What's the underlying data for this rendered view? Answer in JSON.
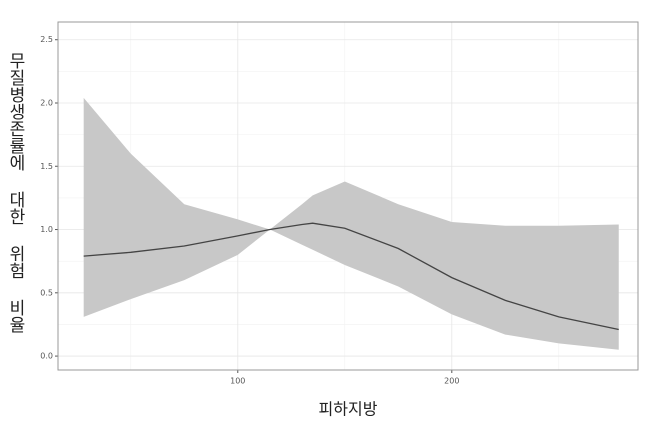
{
  "chart_data": {
    "type": "line",
    "x_label": "피하지방",
    "y_label": "무질병생존률에 대한 위험 비율",
    "x": [
      28,
      50,
      75,
      100,
      115,
      130,
      135,
      150,
      175,
      200,
      225,
      250,
      278
    ],
    "values": [
      0.79,
      0.82,
      0.87,
      0.95,
      1.0,
      1.04,
      1.05,
      1.01,
      0.85,
      0.62,
      0.44,
      0.31,
      0.21
    ],
    "color": "#444444",
    "band": {
      "color": "#c8c8c8",
      "upper": [
        2.04,
        1.6,
        1.2,
        1.08,
        1.0,
        1.2,
        1.27,
        1.38,
        1.2,
        1.06,
        1.03,
        1.03,
        1.04
      ],
      "lower": [
        0.31,
        0.45,
        0.6,
        0.8,
        1.0,
        0.88,
        0.84,
        0.72,
        0.55,
        0.33,
        0.17,
        0.1,
        0.05
      ]
    },
    "xlim": [
      16,
      287
    ],
    "xticks": [
      100,
      200
    ],
    "ylim": [
      -0.11,
      2.64
    ],
    "yticks": [
      {
        "value": 0,
        "label": "0.0"
      },
      {
        "value": 0.5,
        "label": "0.5"
      },
      {
        "value": 1,
        "label": "1.0"
      },
      {
        "value": 1.5,
        "label": "1.5"
      },
      {
        "value": 2,
        "label": "2.0"
      },
      {
        "value": 2.5,
        "label": "2.5"
      }
    ],
    "grid": true
  }
}
